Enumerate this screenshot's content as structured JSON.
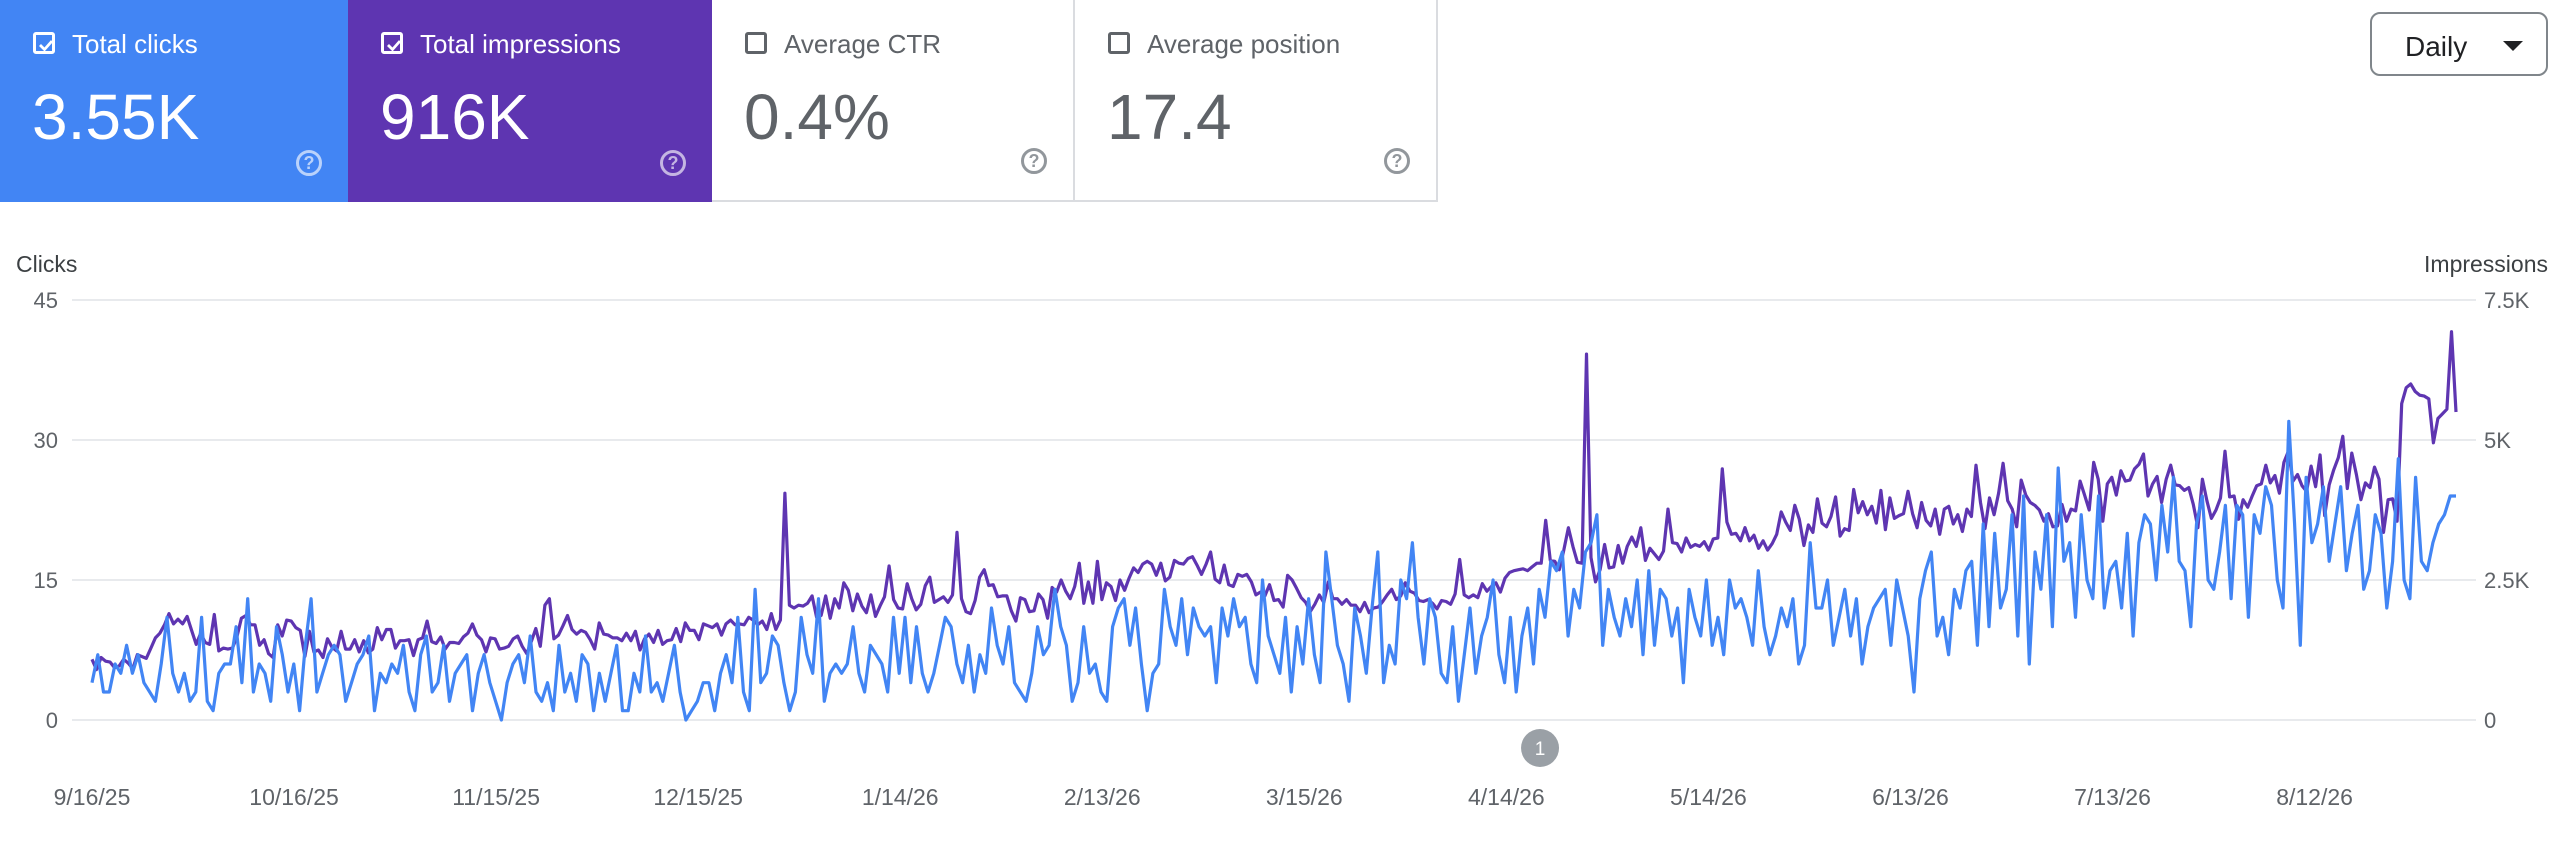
{
  "colors": {
    "clicks": "#4285f4",
    "impressions": "#5e35b1",
    "grid": "#e8eaed",
    "axis_text": "#5f6368"
  },
  "cards": [
    {
      "id": "clicks",
      "label": "Total clicks",
      "value": "3.55K",
      "checked": true,
      "help_icon": "help-circle-icon"
    },
    {
      "id": "impressions",
      "label": "Total impressions",
      "value": "916K",
      "checked": true,
      "help_icon": "help-circle-icon"
    },
    {
      "id": "ctr",
      "label": "Average CTR",
      "value": "0.4%",
      "checked": false,
      "help_icon": "help-circle-icon"
    },
    {
      "id": "position",
      "label": "Average position",
      "value": "17.4",
      "checked": false,
      "help_icon": "help-circle-icon"
    }
  ],
  "range_select": {
    "selected": "Daily",
    "icon": "caret-down-icon"
  },
  "chart_data": {
    "type": "line",
    "left_axis": {
      "title": "Clicks",
      "range": [
        0,
        45
      ],
      "ticks": [
        "0",
        "15",
        "30",
        "45"
      ]
    },
    "right_axis": {
      "title": "Impressions",
      "range": [
        0,
        7500
      ],
      "ticks": [
        "0",
        "2.5K",
        "5K",
        "7.5K"
      ]
    },
    "x_ticks": [
      "9/16/25",
      "10/16/25",
      "11/15/25",
      "12/15/25",
      "1/14/26",
      "2/13/26",
      "3/15/26",
      "4/14/26",
      "5/14/26",
      "6/13/26",
      "7/13/26",
      "8/12/26"
    ],
    "x_range": [
      "9/16/25",
      "9/2/26"
    ],
    "grid": true,
    "annotations": [
      {
        "label": "1",
        "date": "4/19/26"
      }
    ],
    "series": [
      {
        "id": "clicks",
        "axis": "left",
        "values": [
          4,
          7,
          3,
          3,
          6,
          5,
          8,
          5,
          7,
          4,
          3,
          2,
          6,
          11,
          5,
          3,
          5,
          2,
          3,
          11,
          2,
          1,
          5,
          6,
          6,
          10,
          4,
          13,
          3,
          6,
          5,
          2,
          10,
          7,
          3,
          6,
          1,
          8,
          13,
          3,
          5,
          7,
          8,
          7,
          2,
          4,
          6,
          7,
          9,
          1,
          5,
          4,
          6,
          5,
          8,
          3,
          1,
          7,
          9,
          3,
          4,
          8,
          2,
          5,
          6,
          7,
          1,
          5,
          7,
          4,
          2,
          0,
          4,
          6,
          7,
          4,
          9,
          3,
          2,
          4,
          1,
          8,
          3,
          5,
          2,
          7,
          6,
          1,
          5,
          2,
          5,
          8,
          1,
          1,
          5,
          3,
          9,
          3,
          4,
          2,
          5,
          8,
          3,
          0,
          1,
          2,
          4,
          4,
          1,
          5,
          7,
          4,
          11,
          3,
          1,
          14,
          4,
          5,
          9,
          8,
          4,
          1,
          3,
          11,
          7,
          5,
          13,
          2,
          5,
          6,
          5,
          6,
          10,
          5,
          3,
          8,
          7,
          6,
          3,
          11,
          5,
          11,
          4,
          10,
          5,
          3,
          5,
          8,
          11,
          10,
          6,
          4,
          8,
          3,
          7,
          5,
          12,
          8,
          6,
          10,
          4,
          3,
          2,
          5,
          10,
          7,
          8,
          14,
          10,
          8,
          2,
          4,
          10,
          5,
          6,
          3,
          2,
          10,
          12,
          13,
          8,
          12,
          6,
          1,
          5,
          6,
          14,
          10,
          8,
          13,
          7,
          12,
          10,
          9,
          10,
          4,
          12,
          9,
          13,
          10,
          11,
          6,
          4,
          15,
          9,
          7,
          5,
          11,
          3,
          10,
          6,
          13,
          7,
          4,
          18,
          13,
          8,
          6,
          2,
          12,
          9,
          5,
          12,
          18,
          4,
          8,
          6,
          15,
          13,
          19,
          11,
          6,
          13,
          11,
          5,
          4,
          10,
          2,
          7,
          12,
          5,
          9,
          11,
          15,
          7,
          4,
          11,
          3,
          9,
          12,
          6,
          14,
          11,
          17,
          16,
          18,
          9,
          14,
          12,
          18,
          19,
          22,
          8,
          14,
          11,
          9,
          13,
          10,
          15,
          7,
          16,
          8,
          14,
          13,
          9,
          12,
          4,
          14,
          11,
          9,
          15,
          8,
          11,
          7,
          15,
          12,
          13,
          11,
          8,
          16,
          10,
          7,
          9,
          12,
          10,
          13,
          6,
          8,
          19,
          12,
          12,
          15,
          8,
          11,
          14,
          9,
          13,
          6,
          10,
          12,
          13,
          14,
          8,
          15,
          12,
          9,
          3,
          13,
          16,
          18,
          9,
          11,
          7,
          14,
          12,
          16,
          17,
          8,
          21,
          10,
          20,
          12,
          14,
          22,
          9,
          24,
          6,
          18,
          14,
          22,
          10,
          27,
          17,
          19,
          11,
          22,
          15,
          13,
          24,
          12,
          16,
          17,
          12,
          20,
          9,
          19,
          22,
          21,
          15,
          23,
          18,
          26,
          17,
          16,
          10,
          21,
          24,
          15,
          14,
          18,
          23,
          13,
          23,
          22,
          11,
          22,
          20,
          25,
          23,
          15,
          12,
          32,
          21,
          8,
          26,
          19,
          21,
          25,
          17,
          21,
          25,
          16,
          20,
          23,
          14,
          16,
          22,
          20,
          12,
          17,
          28,
          15,
          13,
          26,
          17,
          16,
          19,
          21,
          22,
          24,
          24
        ]
      },
      {
        "id": "impressions",
        "axis": "left_scaled",
        "values": [
          6.5,
          5.4,
          6.7,
          6.3,
          6.2,
          5.6,
          5.8,
          6.5,
          6.1,
          5.5,
          7,
          6.8,
          6.6,
          7.7,
          8.8,
          9.3,
          10.2,
          11.4,
          10.3,
          10.8,
          10.3,
          11.1,
          9.6,
          8.1,
          9.3,
          8.3,
          8.1,
          11.3,
          7.4,
          7.7,
          7.6,
          7.7,
          8.9,
          10.9,
          11.2,
          10.2,
          10.2,
          8,
          8.6,
          7.1,
          6.7,
          10.2,
          9,
          10.7,
          10.6,
          9.9,
          9.6,
          6.8,
          9.5,
          7.3,
          7.5,
          6.7,
          8.7,
          7.8,
          7.4,
          9.5,
          7.6,
          7.6,
          8.6,
          7.3,
          8.5,
          7.2,
          7.6,
          9.9,
          8.6,
          9.7,
          9.7,
          7.7,
          8.5,
          8.5,
          8.6,
          6.9,
          8.6,
          8.8,
          10.6,
          8.4,
          8.2,
          8.9,
          7.6,
          8.3,
          8.3,
          8.2,
          8.9,
          9.3,
          10.3,
          9.1,
          8.6,
          7.3,
          8.8,
          8.7,
          7.6,
          7.7,
          7.9,
          8.7,
          9,
          7.9,
          7.1,
          8.4,
          9.8,
          7.9,
          12.3,
          13,
          8.7,
          9.1,
          10.1,
          11.2,
          9.7,
          9.2,
          9.6,
          9.4,
          8.6,
          7.6,
          10.4,
          9.2,
          9.1,
          8.8,
          8.8,
          8.5,
          9.3,
          8.5,
          9.5,
          7.5,
          8.7,
          9.2,
          8.3,
          9.6,
          8.1,
          8.5,
          8.6,
          9.8,
          8.4,
          10.4,
          9.6,
          9.6,
          8.6,
          10.3,
          10.1,
          9.9,
          10.3,
          9.1,
          10.3,
          10.7,
          10.2,
          10.3,
          10.2,
          11,
          10.7,
          10.2,
          10.6,
          9.7,
          11.4,
          9.7,
          10.7,
          24.3,
          12.3,
          12,
          12.3,
          12.2,
          12.5,
          13.3,
          11,
          11.2,
          13.3,
          10.9,
          13,
          12,
          14.7,
          13.9,
          11.7,
          13.5,
          12.2,
          11.5,
          13.4,
          11.1,
          12.2,
          13.2,
          16.5,
          12.9,
          12,
          11.9,
          14.6,
          13,
          11.8,
          12.4,
          14.4,
          15.3,
          12.6,
          12.9,
          13.2,
          12.6,
          13.4,
          20.1,
          13,
          11.6,
          11.4,
          12.8,
          15.3,
          16.1,
          14.4,
          14.5,
          13.2,
          13.3,
          13.3,
          11.7,
          10.6,
          13.1,
          12.9,
          11.6,
          11.7,
          13.5,
          12.9,
          10.9,
          14.2,
          13.7,
          15,
          13.8,
          13,
          14.3,
          16.8,
          12.5,
          14.8,
          12.5,
          17,
          12.9,
          14.7,
          14.3,
          12.8,
          15,
          13.9,
          15.2,
          16.3,
          15.8,
          16.7,
          17,
          16.7,
          15.5,
          16.8,
          14.9,
          15.3,
          17.1,
          16.8,
          16.7,
          17.3,
          17.5,
          16.6,
          15.6,
          16.7,
          18,
          15.1,
          14.7,
          16.6,
          14.5,
          14.3,
          15.6,
          15.4,
          15.6,
          14.8,
          13.4,
          13.7,
          13.3,
          14.5,
          12.8,
          12.9,
          12.1,
          15.5,
          15,
          14.1,
          13.1,
          12.6,
          11.6,
          12.4,
          13.4,
          12.6,
          14.8,
          13,
          13,
          12.4,
          12.9,
          12.3,
          12.3,
          11.6,
          12.6,
          11.5,
          12,
          12.1,
          12.7,
          13.4,
          14,
          12.9,
          13.3,
          14.7,
          13.8,
          13.6,
          12.8,
          12.7,
          12.9,
          12.5,
          11.9,
          12.8,
          12.7,
          12.4,
          13.5,
          17.2,
          13.4,
          13.1,
          13.4,
          13.1,
          14.6,
          13.8,
          14.3,
          14.7,
          13.7,
          15.2,
          15.8,
          16,
          16.1,
          16.2,
          16,
          16.4,
          16.8,
          16.8,
          21.4,
          17.1,
          17,
          16.1,
          18.2,
          20.6,
          18.6,
          16.9,
          16.8,
          39.2,
          17.4,
          14.8,
          16.1,
          18.8,
          16.3,
          16.4,
          18.7,
          16.8,
          18.6,
          19.6,
          18.6,
          20.6,
          17.1,
          18.4,
          17.8,
          17.2,
          18.1,
          22.6,
          19,
          18.9,
          18,
          19.5,
          18.5,
          18.8,
          18.6,
          19.1,
          18.2,
          19.4,
          19.5,
          26.9,
          21.2,
          19.9,
          20,
          19.2,
          20.6,
          19.2,
          19.8,
          18.4,
          19.2,
          18.2,
          18.9,
          19.9,
          22.3,
          21.2,
          20.3,
          23,
          21.5,
          18.7,
          20.9,
          20.1,
          23.7,
          21.1,
          20.7,
          21.8,
          23.9,
          19.7,
          20.5,
          20.3,
          24.7,
          22.2,
          23.4,
          22,
          22.9,
          21.1,
          24.6,
          20.4,
          23.8,
          21.6,
          21.9,
          22.1,
          24.5,
          22.1,
          20.6,
          23.3,
          21.4,
          20.8,
          22.6,
          19.9,
          22.6,
          22.9,
          21,
          22,
          20.2,
          22.6,
          21.8,
          27.3,
          23.3,
          20.5,
          23.8,
          22,
          24.3,
          27.5,
          23.5,
          22.6,
          20.7,
          25.7,
          24.1,
          23.3,
          23,
          22.5,
          21.3,
          22.1,
          20.7,
          20.8,
          23.1,
          21.3,
          22.6,
          22.4,
          25.6,
          24.1,
          22.5,
          27.6,
          25.8,
          21.3,
          25.3,
          26,
          24.1,
          26.7,
          25.6,
          25.7,
          26.9,
          27.4,
          28.5,
          24,
          25.3,
          26.1,
          23.3,
          25.8,
          27.3,
          25.2,
          25.1,
          24.6,
          24.9,
          23.1,
          20.6,
          25.8,
          23.5,
          21.6,
          22.5,
          23.8,
          28.8,
          23.9,
          24,
          21.5,
          23.6,
          22.8,
          24,
          25.1,
          25.3,
          27.3,
          25.4,
          26.2,
          24.3,
          27.6,
          28.8,
          25.6,
          26.3,
          25.1,
          24.5,
          27.2,
          25,
          28.4,
          21.9,
          25.2,
          26.8,
          28.1,
          30.4,
          24.8,
          28.6,
          26.3,
          23.6,
          25.4,
          24.9,
          27.1,
          25.8,
          20.1,
          23.6,
          23.7,
          21.3,
          33.9,
          35.6,
          36,
          35.2,
          34.8,
          34.7,
          34.4,
          29.7,
          32.3,
          32.8,
          33.3,
          41.6,
          33
        ]
      }
    ]
  }
}
